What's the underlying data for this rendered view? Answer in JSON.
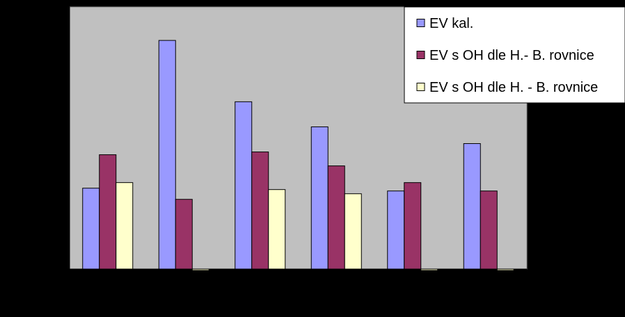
{
  "chart_data": {
    "type": "bar",
    "categories": [
      "",
      "",
      "",
      "",
      "",
      ""
    ],
    "series": [
      {
        "name": "EV kal.",
        "color": "#9999FF",
        "values": [
          29,
          82,
          60,
          51,
          28,
          45
        ]
      },
      {
        "name": "EV s OH dle H.- B. rovnice",
        "color": "#993366",
        "values": [
          41,
          25,
          42,
          37,
          31,
          28
        ]
      },
      {
        "name": "EV s OH dle H. - B. rovnice",
        "color": "#FFFFCC",
        "values": [
          31,
          0,
          28.5,
          27,
          0,
          0
        ]
      }
    ],
    "ylim": [
      0,
      94
    ],
    "y_ticks": 9,
    "grid": false,
    "legend_position": "top-right",
    "plot_background": "#C0C0C0",
    "page_background": "#000000",
    "title": "",
    "xlabel": "",
    "ylabel": ""
  }
}
